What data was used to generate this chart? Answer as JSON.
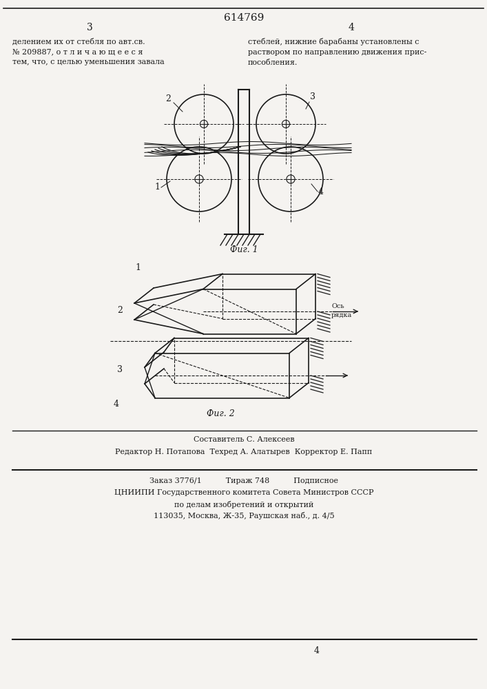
{
  "bg_color": "#f5f3f0",
  "title_number": "614769",
  "col_left_num": "3",
  "col_right_num": "4",
  "text_left": "делением их от стебля по авт.св.\n№ 209887, о т л и ч а ю щ е е с я\nтем, что, с целью уменьшения завала",
  "text_right": "стеблей, нижние барабаны установлены с\nраствором по направлению движения прис-\nпособления.",
  "fig1_caption": "Фиг. 1",
  "fig2_caption": "Фиг. 2",
  "footer_line1": "Составитель С. Алексеев",
  "footer_line2": "Редактор Н. Потапова  Техред А. Алатырев  Корректор Е. Папп",
  "footer_line3": "Заказ 3776/1          Тираж 748          Подписное",
  "footer_line4": "ЦНИИПИ Государственного комитета Совета Министров СССР",
  "footer_line5": "по делам изобретений и открытий",
  "footer_line6": "113035, Москва, Ж-35, Раушская наб., д. 4/5",
  "line_color": "#1a1a1a",
  "label_color": "#1a1a1a",
  "fig1_label2": "2",
  "fig1_label3": "3",
  "fig1_label1": "1",
  "fig1_label4": "4",
  "fig2_label1": "1",
  "fig2_label2": "2",
  "fig2_label3": "3",
  "fig2_label4": "4",
  "fig2_axis_label": "Ось\nрядка"
}
